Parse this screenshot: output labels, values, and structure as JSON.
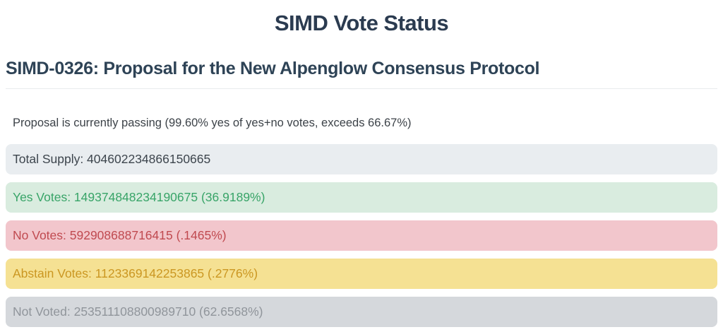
{
  "page": {
    "title": "SIMD Vote Status",
    "heading": "SIMD-0326: Proposal for the New Alpenglow Consensus Protocol",
    "status_line": "Proposal is currently passing (99.60% yes of yes+no votes, exceeds 66.67%)"
  },
  "proposal": {
    "id": "SIMD-0326",
    "name": "Proposal for the New Alpenglow Consensus Protocol",
    "passing": true,
    "yes_of_yes_no_percent": "99.60%",
    "threshold_percent": "66.67%"
  },
  "bars": [
    {
      "key": "total-supply",
      "label": "Total Supply",
      "amount": "404602234866150665",
      "percent": "",
      "display": "Total Supply: 404602234866150665",
      "bg": "#e9edf0",
      "fg": "#3d454d"
    },
    {
      "key": "yes-votes",
      "label": "Yes Votes",
      "amount": "149374848234190675",
      "percent": "36.9189%",
      "display": "Yes Votes: 149374848234190675 (36.9189%)",
      "bg": "#d9ecdf",
      "fg": "#38a468"
    },
    {
      "key": "no-votes",
      "label": "No Votes",
      "amount": "592908688716415",
      "percent": ".1465%",
      "display": "No Votes: 592908688716415 (.1465%)",
      "bg": "#f2c6cc",
      "fg": "#c04a50"
    },
    {
      "key": "abstain-votes",
      "label": "Abstain Votes",
      "amount": "1123369142253865",
      "percent": ".2776%",
      "display": "Abstain Votes: 1123369142253865 (.2776%)",
      "bg": "#f5e193",
      "fg": "#cb9722"
    },
    {
      "key": "not-voted",
      "label": "Not Voted",
      "amount": "253511108800989710",
      "percent": "62.6568%",
      "display": "Not Voted: 253511108800989710 (62.6568%)",
      "bg": "#d5d8dc",
      "fg": "#90959b"
    }
  ],
  "colors": {
    "title_text": "#2b3b50",
    "heading_text": "#2e4356",
    "divider": "#e8ebed",
    "body_text": "#3c4248"
  }
}
